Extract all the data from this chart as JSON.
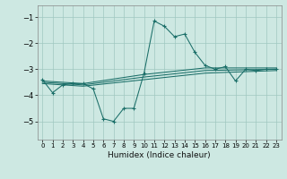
{
  "xlabel": "Humidex (Indice chaleur)",
  "bg_color": "#cde8e2",
  "grid_color": "#a0c8c0",
  "line_color": "#1a6e68",
  "xlim": [
    -0.5,
    23.5
  ],
  "ylim": [
    -5.7,
    -0.55
  ],
  "yticks": [
    -5,
    -4,
    -3,
    -2,
    -1
  ],
  "xticks": [
    0,
    1,
    2,
    3,
    4,
    5,
    6,
    7,
    8,
    9,
    10,
    11,
    12,
    13,
    14,
    15,
    16,
    17,
    18,
    19,
    20,
    21,
    22,
    23
  ],
  "main_x": [
    0,
    1,
    2,
    3,
    4,
    5,
    6,
    7,
    8,
    9,
    10,
    11,
    12,
    13,
    14,
    15,
    16,
    17,
    18,
    19,
    20,
    21,
    22,
    23
  ],
  "main_y": [
    -3.4,
    -3.9,
    -3.6,
    -3.55,
    -3.55,
    -3.75,
    -4.9,
    -5.0,
    -4.5,
    -4.5,
    -3.15,
    -1.15,
    -1.35,
    -1.75,
    -1.65,
    -2.35,
    -2.85,
    -3.0,
    -2.9,
    -3.45,
    -3.0,
    -3.05,
    -3.0,
    -3.0
  ],
  "trend_lines": [
    {
      "x": [
        0,
        4,
        10,
        16,
        23
      ],
      "y": [
        -3.45,
        -3.55,
        -3.2,
        -2.95,
        -2.95
      ]
    },
    {
      "x": [
        0,
        4,
        10,
        16,
        23
      ],
      "y": [
        -3.5,
        -3.6,
        -3.3,
        -3.05,
        -3.0
      ]
    },
    {
      "x": [
        0,
        4,
        10,
        16,
        23
      ],
      "y": [
        -3.55,
        -3.65,
        -3.4,
        -3.15,
        -3.05
      ]
    }
  ]
}
